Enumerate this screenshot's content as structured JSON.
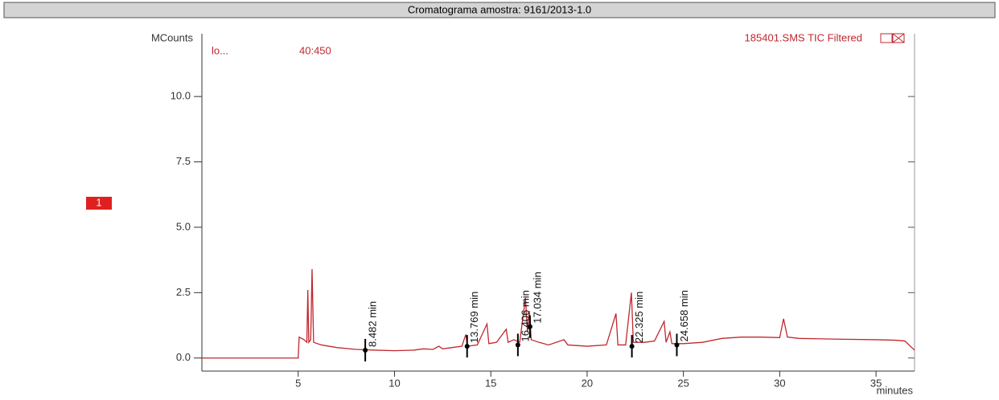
{
  "chart_data": {
    "type": "line",
    "title": "Cromatograma amostra: 9161/2013-1.0",
    "y_label": "MCounts",
    "x_label": "minutes",
    "trace_title": "185401.SMS TIC Filtered",
    "ion_label": "lo...",
    "mass_range": "40:450",
    "channel": "1",
    "xlim": [
      0,
      37
    ],
    "ylim": [
      -0.5,
      12.4
    ],
    "xticks": [
      5,
      10,
      15,
      20,
      25,
      30,
      35
    ],
    "yticks": [
      {
        "value": 0,
        "label": "0.0"
      },
      {
        "value": 2.5,
        "label": "2.5"
      },
      {
        "value": 5,
        "label": "5.0"
      },
      {
        "value": 7.5,
        "label": "7.5"
      },
      {
        "value": 10,
        "label": "10.0"
      }
    ],
    "x": [
      0,
      5.0,
      5.05,
      5.3,
      5.45,
      5.5,
      5.55,
      5.65,
      5.72,
      5.8,
      6.2,
      7,
      8,
      9,
      10,
      11,
      11.5,
      12,
      12.3,
      12.5,
      13,
      13.5,
      13.7,
      13.8,
      14.3,
      14.8,
      14.9,
      15.3,
      15.8,
      15.9,
      16.2,
      16.5,
      16.8,
      16.9,
      17.0,
      17.1,
      17.5,
      18,
      18.8,
      19,
      20,
      21,
      21.5,
      21.6,
      22,
      22.3,
      22.4,
      23,
      23.5,
      24.0,
      24.1,
      24.3,
      24.4,
      25,
      26,
      27,
      28,
      29,
      30,
      30.2,
      30.4,
      31,
      33,
      35,
      36,
      36.5,
      37
    ],
    "series": [
      {
        "name": "185401.SMS TIC Filtered",
        "color": "#c0282e",
        "values": [
          0,
          0,
          0.8,
          0.7,
          0.6,
          2.6,
          0.6,
          0.7,
          3.4,
          0.6,
          0.5,
          0.4,
          0.33,
          0.3,
          0.28,
          0.3,
          0.35,
          0.33,
          0.45,
          0.35,
          0.4,
          0.45,
          0.9,
          0.45,
          0.5,
          1.3,
          0.55,
          0.6,
          1.1,
          0.6,
          0.7,
          0.6,
          2.3,
          1.0,
          1.8,
          0.7,
          0.6,
          0.5,
          0.7,
          0.5,
          0.45,
          0.5,
          1.7,
          0.5,
          0.5,
          2.5,
          0.6,
          0.6,
          0.65,
          1.4,
          0.6,
          1.0,
          0.55,
          0.55,
          0.6,
          0.75,
          0.8,
          0.8,
          0.78,
          1.5,
          0.8,
          0.75,
          0.72,
          0.7,
          0.68,
          0.65,
          0.3
        ]
      }
    ],
    "peaks": [
      {
        "label": "8.482 min",
        "x": 8.482,
        "y": 0.3
      },
      {
        "label": "13.769 min",
        "x": 13.769,
        "y": 0.45
      },
      {
        "label": "16.406 min",
        "x": 16.406,
        "y": 0.5
      },
      {
        "label": "17.034 min",
        "x": 17.034,
        "y": 1.2
      },
      {
        "label": "22.325 min",
        "x": 22.325,
        "y": 0.45
      },
      {
        "label": "24.658 min",
        "x": 24.658,
        "y": 0.5
      }
    ]
  }
}
